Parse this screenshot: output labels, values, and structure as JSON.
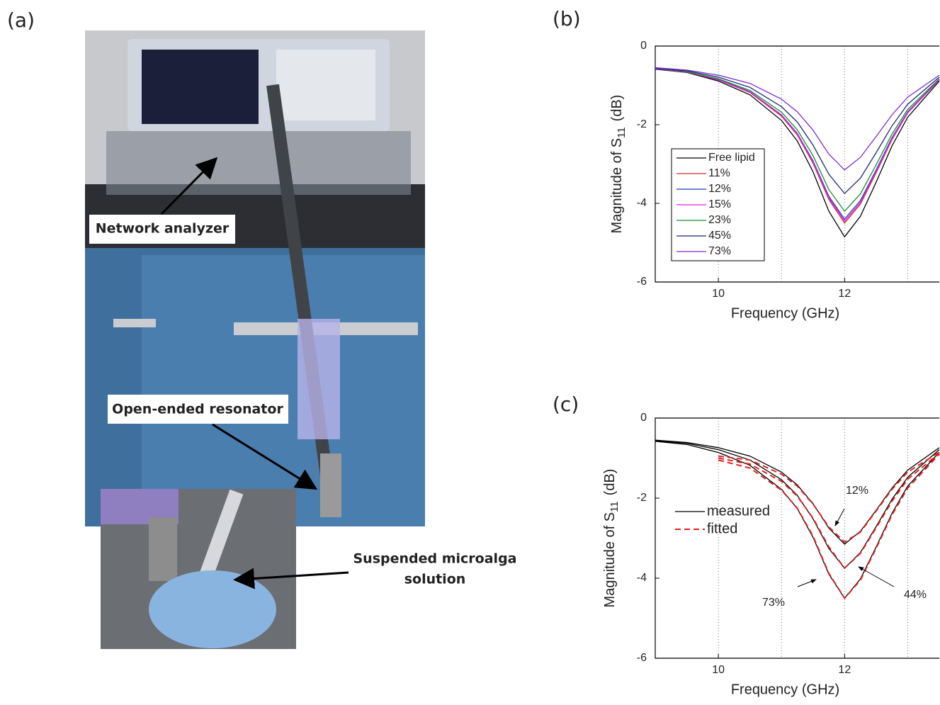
{
  "panel_labels": [
    "(a)",
    "(b)",
    "(c)"
  ],
  "photo": {
    "labels": [
      "Network analyzer",
      "Open-ended resonator"
    ],
    "solution_label": [
      "Suspended microalga",
      "solution"
    ]
  },
  "chart_data": [
    {
      "type": "line",
      "xlabel": "Frequency (GHz)",
      "ylabel": [
        "Magnitude of S",
        "11",
        "(dB)"
      ],
      "x": [
        9,
        9.5,
        10,
        10.5,
        11,
        11.25,
        11.5,
        11.75,
        12,
        12.25,
        12.5,
        12.75,
        13,
        13.5
      ],
      "xlim": [
        9,
        13.5
      ],
      "xticks": [
        10,
        12
      ],
      "xgrid": [
        10,
        11,
        12,
        13
      ],
      "ylim": [
        -6,
        0
      ],
      "yticks": [
        0,
        -2,
        -4,
        -6
      ],
      "legend": "left",
      "legend_frame": true,
      "series": [
        {
          "name": "Free lipid",
          "color": "#000000",
          "values": [
            -0.59,
            -0.67,
            -0.89,
            -1.24,
            -1.89,
            -2.41,
            -3.2,
            -4.2,
            -4.85,
            -4.33,
            -3.46,
            -2.54,
            -1.81,
            -0.89
          ]
        },
        {
          "name": "11%",
          "color": "#d62728",
          "values": [
            -0.58,
            -0.66,
            -0.86,
            -1.18,
            -1.78,
            -2.26,
            -2.98,
            -3.9,
            -4.5,
            -4.02,
            -3.22,
            -2.38,
            -1.7,
            -0.86
          ]
        },
        {
          "name": "12%",
          "color": "#1f3fbf",
          "values": [
            -0.58,
            -0.66,
            -0.85,
            -1.16,
            -1.75,
            -2.22,
            -2.92,
            -3.82,
            -4.4,
            -3.93,
            -3.15,
            -2.33,
            -1.67,
            -0.85
          ]
        },
        {
          "name": "15%",
          "color": "#e020e0",
          "values": [
            -0.58,
            -0.66,
            -0.86,
            -1.17,
            -1.76,
            -2.24,
            -2.95,
            -3.86,
            -4.45,
            -3.98,
            -3.19,
            -2.36,
            -1.69,
            -0.86
          ]
        },
        {
          "name": "23%",
          "color": "#1a8a2a",
          "values": [
            -0.57,
            -0.65,
            -0.83,
            -1.13,
            -1.68,
            -2.13,
            -2.79,
            -3.65,
            -4.2,
            -3.76,
            -3.02,
            -2.24,
            -1.61,
            -0.83
          ]
        },
        {
          "name": "45%",
          "color": "#1a2a6c",
          "values": [
            -0.57,
            -0.63,
            -0.79,
            -1.05,
            -1.54,
            -1.93,
            -2.52,
            -3.26,
            -3.75,
            -3.36,
            -2.71,
            -2.03,
            -1.48,
            -0.79
          ]
        },
        {
          "name": "73%",
          "color": "#7a2ad0",
          "values": [
            -0.55,
            -0.61,
            -0.74,
            -0.95,
            -1.35,
            -1.67,
            -2.14,
            -2.75,
            -3.15,
            -2.83,
            -2.3,
            -1.75,
            -1.3,
            -0.74
          ]
        }
      ]
    },
    {
      "type": "line",
      "xlabel": "Frequency (GHz)",
      "ylabel": [
        "Magnitude of S",
        "11",
        "(dB)"
      ],
      "x": [
        9,
        9.5,
        10,
        10.5,
        11,
        11.25,
        11.5,
        11.75,
        12,
        12.25,
        12.5,
        12.75,
        13,
        13.5
      ],
      "xlim": [
        9,
        13.5
      ],
      "xticks": [
        10,
        12
      ],
      "xgrid": [
        10,
        11,
        12,
        13
      ],
      "ylim": [
        -6,
        0
      ],
      "yticks": [
        0,
        -2,
        -4,
        -6
      ],
      "legend": "upper left",
      "legend_frame": false,
      "annotations": [
        "12%",
        "44%",
        "73%"
      ],
      "series": [
        {
          "name": "measured",
          "color": "#000000",
          "dashed": false,
          "curves": [
            [
              -0.55,
              -0.61,
              -0.74,
              -0.95,
              -1.35,
              -1.67,
              -2.14,
              -2.75,
              -3.15,
              -2.83,
              -2.3,
              -1.75,
              -1.3,
              -0.74
            ],
            [
              -0.57,
              -0.63,
              -0.79,
              -1.05,
              -1.54,
              -1.93,
              -2.52,
              -3.26,
              -3.75,
              -3.36,
              -2.71,
              -2.03,
              -1.48,
              -0.79
            ],
            [
              -0.58,
              -0.66,
              -0.86,
              -1.18,
              -1.78,
              -2.26,
              -2.98,
              -3.9,
              -4.5,
              -4.02,
              -3.22,
              -2.38,
              -1.7,
              -0.86
            ]
          ]
        },
        {
          "name": "fitted",
          "color": "#e02020",
          "dashed": true,
          "curves": [
            [
              null,
              null,
              -0.95,
              -1.05,
              -1.4,
              -1.7,
              -2.15,
              -2.72,
              -3.1,
              -2.85,
              -2.32,
              -1.78,
              -1.35,
              -0.85
            ],
            [
              null,
              null,
              -1.0,
              -1.15,
              -1.58,
              -1.95,
              -2.5,
              -3.22,
              -3.75,
              -3.38,
              -2.74,
              -2.08,
              -1.53,
              -0.88
            ],
            [
              null,
              null,
              -1.05,
              -1.25,
              -1.8,
              -2.25,
              -2.95,
              -3.88,
              -4.5,
              -4.05,
              -3.25,
              -2.42,
              -1.75,
              -0.9
            ]
          ]
        }
      ]
    }
  ]
}
